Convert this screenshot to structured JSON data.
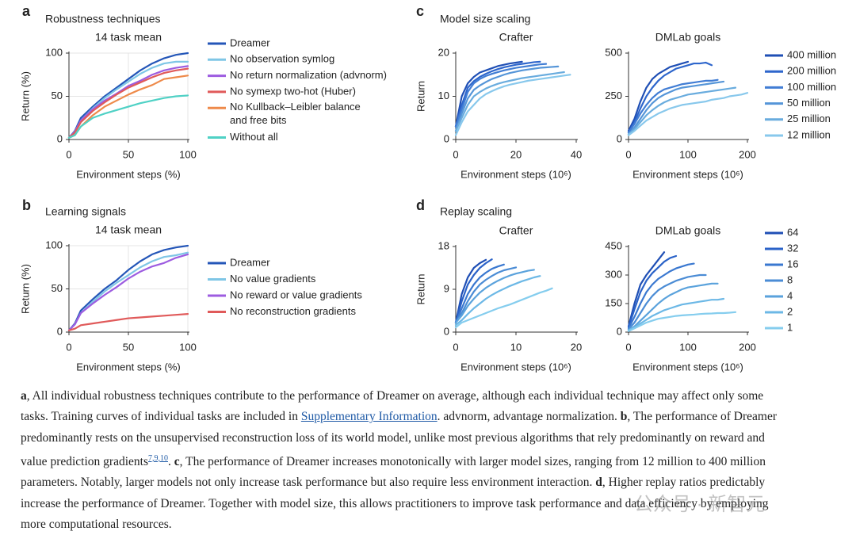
{
  "chart_data": [
    {
      "type": "line",
      "panel": "a",
      "heading": "Robustness techniques",
      "title": "14 task mean",
      "xlabel": "Environment steps (%)",
      "ylabel": "Return (%)",
      "grid": true,
      "x": [
        0,
        5,
        10,
        20,
        30,
        40,
        50,
        60,
        70,
        80,
        90,
        100
      ],
      "xlim": [
        0,
        100
      ],
      "xticks": [
        0,
        50,
        100
      ],
      "ylim": [
        0,
        100
      ],
      "yticks": [
        0,
        50,
        100
      ],
      "series": [
        {
          "name": "Dreamer",
          "color": "#2456b8",
          "values": [
            2,
            10,
            25,
            38,
            50,
            60,
            70,
            80,
            88,
            94,
            98,
            100
          ]
        },
        {
          "name": "No observation symlog",
          "color": "#7fc6e6",
          "values": [
            2,
            9,
            22,
            36,
            48,
            58,
            67,
            76,
            83,
            88,
            90,
            90
          ]
        },
        {
          "name": "No return normalization (advnorm)",
          "color": "#9d5ce0",
          "values": [
            2,
            9,
            22,
            35,
            45,
            53,
            62,
            68,
            75,
            80,
            83,
            85
          ]
        },
        {
          "name": "No symexp two-hot (Huber)",
          "color": "#e05a5a",
          "values": [
            2,
            8,
            20,
            33,
            43,
            52,
            60,
            66,
            72,
            77,
            80,
            82
          ]
        },
        {
          "name": "No Kullback–Leibler balance\nand free bits",
          "color": "#ee8a4a",
          "values": [
            2,
            5,
            15,
            28,
            38,
            45,
            52,
            58,
            63,
            70,
            72,
            74
          ]
        },
        {
          "name": "Without all",
          "color": "#4fd1c5",
          "values": [
            2,
            5,
            15,
            25,
            30,
            34,
            38,
            42,
            45,
            48,
            50,
            51
          ]
        }
      ]
    },
    {
      "type": "line",
      "panel": "b",
      "heading": "Learning signals",
      "title": "14 task mean",
      "xlabel": "Environment steps (%)",
      "ylabel": "Return (%)",
      "grid": true,
      "x": [
        0,
        5,
        10,
        20,
        30,
        40,
        50,
        60,
        70,
        80,
        90,
        100
      ],
      "xlim": [
        0,
        100
      ],
      "xticks": [
        0,
        50,
        100
      ],
      "ylim": [
        0,
        100
      ],
      "yticks": [
        0,
        50,
        100
      ],
      "series": [
        {
          "name": "Dreamer",
          "color": "#2456b8",
          "values": [
            2,
            10,
            25,
            38,
            50,
            60,
            72,
            82,
            90,
            95,
            98,
            100
          ]
        },
        {
          "name": "No value gradients",
          "color": "#7fc6e6",
          "values": [
            2,
            9,
            22,
            35,
            47,
            57,
            66,
            75,
            82,
            87,
            89,
            92
          ]
        },
        {
          "name": "No reward or value gradients",
          "color": "#9d5ce0",
          "values": [
            2,
            9,
            22,
            33,
            43,
            52,
            62,
            70,
            76,
            80,
            86,
            90
          ]
        },
        {
          "name": "No reconstruction gradients",
          "color": "#e05a5a",
          "values": [
            2,
            4,
            8,
            10,
            12,
            14,
            16,
            17,
            18,
            19,
            20,
            21
          ]
        }
      ]
    },
    {
      "type": "line",
      "panel": "c",
      "heading": "Model size scaling",
      "title": "Crafter",
      "xlabel": "Environment steps (10⁶)",
      "ylabel": "Return",
      "grid": false,
      "x": [
        0,
        2,
        4,
        6,
        8,
        10,
        12,
        14,
        16,
        18,
        20,
        22,
        24,
        26,
        28,
        30,
        32,
        34,
        36,
        38
      ],
      "xlim": [
        0,
        40
      ],
      "xticks": [
        0,
        20,
        40
      ],
      "ylim": [
        0,
        20
      ],
      "yticks": [
        0,
        10,
        20
      ],
      "series": [
        {
          "name": "400 million",
          "color": "#1f4fb5",
          "values": [
            3,
            10,
            13,
            14.5,
            15.5,
            16,
            16.5,
            17,
            17.3,
            17.6,
            17.8,
            18,
            null,
            null,
            null,
            null,
            null,
            null,
            null,
            null
          ]
        },
        {
          "name": "200 million",
          "color": "#2e66cc",
          "values": [
            3,
            8,
            12,
            13.5,
            14.5,
            15.2,
            15.8,
            16.3,
            16.7,
            17,
            17.3,
            17.5,
            17.7,
            17.9,
            18,
            null,
            null,
            null,
            null,
            null
          ]
        },
        {
          "name": "100 million",
          "color": "#417dd4",
          "values": [
            3,
            7,
            11,
            13,
            14,
            14.7,
            15.2,
            15.6,
            16,
            16.3,
            16.6,
            16.8,
            17,
            17.2,
            17.4,
            17.5,
            null,
            null,
            null,
            null
          ]
        },
        {
          "name": "50 million",
          "color": "#5595d8",
          "values": [
            2,
            6,
            9.5,
            11.5,
            12.5,
            13.3,
            14,
            14.5,
            15,
            15.4,
            15.7,
            16,
            16.2,
            16.4,
            16.6,
            16.7,
            16.8,
            16.9,
            null,
            null
          ]
        },
        {
          "name": "25 million",
          "color": "#69acde",
          "values": [
            2,
            5,
            8,
            10,
            11,
            11.8,
            12.4,
            12.9,
            13.3,
            13.6,
            13.9,
            14.2,
            14.4,
            14.6,
            14.8,
            15,
            15.2,
            15.4,
            15.6,
            null
          ]
        },
        {
          "name": "12 million",
          "color": "#88c8ec",
          "values": [
            1,
            4,
            6.5,
            8,
            9.5,
            10.5,
            11.2,
            11.8,
            12.3,
            12.7,
            13,
            13.3,
            13.6,
            13.8,
            14,
            14.2,
            14.4,
            14.6,
            14.8,
            15
          ]
        }
      ]
    },
    {
      "type": "line",
      "title": "DMLab goals",
      "xlabel": "Environment steps (10⁶)",
      "grid": false,
      "x": [
        0,
        10,
        20,
        30,
        40,
        50,
        60,
        70,
        80,
        90,
        100,
        110,
        120,
        130,
        140,
        150,
        160,
        170,
        180,
        190,
        200
      ],
      "xlim": [
        0,
        200
      ],
      "xticks": [
        0,
        100,
        200
      ],
      "ylim": [
        0,
        500
      ],
      "yticks": [
        0,
        250,
        500
      ],
      "series": [
        {
          "color": "#1f4fb5",
          "values": [
            50,
            120,
            220,
            300,
            350,
            380,
            400,
            420,
            430,
            440,
            450,
            null,
            null,
            null,
            null,
            null,
            null,
            null,
            null,
            null,
            null
          ]
        },
        {
          "color": "#2e66cc",
          "values": [
            40,
            100,
            180,
            250,
            300,
            340,
            370,
            390,
            410,
            420,
            430,
            440,
            440,
            445,
            430,
            null,
            null,
            null,
            null,
            null,
            null
          ]
        },
        {
          "color": "#417dd4",
          "values": [
            40,
            90,
            150,
            200,
            240,
            270,
            290,
            300,
            310,
            320,
            325,
            330,
            335,
            340,
            340,
            345,
            null,
            null,
            null,
            null,
            null
          ]
        },
        {
          "color": "#5595d8",
          "values": [
            30,
            70,
            120,
            170,
            210,
            240,
            260,
            275,
            290,
            300,
            305,
            310,
            315,
            320,
            325,
            330,
            335,
            null,
            null,
            null,
            null
          ]
        },
        {
          "color": "#69acde",
          "values": [
            30,
            60,
            100,
            140,
            170,
            195,
            215,
            230,
            240,
            250,
            260,
            265,
            270,
            275,
            280,
            285,
            290,
            295,
            300,
            null,
            null
          ]
        },
        {
          "color": "#88c8ec",
          "values": [
            25,
            50,
            80,
            110,
            130,
            150,
            165,
            180,
            190,
            200,
            205,
            210,
            215,
            220,
            230,
            235,
            240,
            250,
            255,
            260,
            270
          ]
        }
      ]
    },
    {
      "type": "line",
      "panel": "d",
      "heading": "Replay scaling",
      "title": "Crafter",
      "xlabel": "Environment steps (10⁶)",
      "ylabel": "Return",
      "grid": false,
      "x": [
        0,
        1,
        2,
        3,
        4,
        5,
        6,
        7,
        8,
        9,
        10,
        11,
        12,
        13,
        14,
        15,
        16
      ],
      "xlim": [
        0,
        20
      ],
      "xticks": [
        0,
        10,
        20
      ],
      "ylim": [
        0,
        18
      ],
      "yticks": [
        0,
        9,
        18
      ],
      "series": [
        {
          "name": "64",
          "color": "#1f4fb5",
          "values": [
            2,
            8,
            11.5,
            13.5,
            14.5,
            15.2,
            null,
            null,
            null,
            null,
            null,
            null,
            null,
            null,
            null,
            null,
            null
          ]
        },
        {
          "name": "32",
          "color": "#2a62c8",
          "values": [
            2,
            6.5,
            10,
            12,
            13.5,
            14.5,
            15.3,
            null,
            null,
            null,
            null,
            null,
            null,
            null,
            null,
            null,
            null
          ]
        },
        {
          "name": "16",
          "color": "#3a78d0",
          "values": [
            2,
            5,
            8,
            10,
            11.5,
            12.5,
            13.3,
            13.8,
            14.2,
            null,
            null,
            null,
            null,
            null,
            null,
            null,
            null
          ]
        },
        {
          "name": "8",
          "color": "#4b8cd5",
          "values": [
            2,
            4,
            6.5,
            8.5,
            10,
            11,
            11.8,
            12.5,
            13,
            13.3,
            13.6,
            null,
            null,
            null,
            null,
            null,
            null
          ]
        },
        {
          "name": "4",
          "color": "#5aa2dc",
          "values": [
            2,
            3.5,
            5.5,
            7,
            8.3,
            9.3,
            10.1,
            10.8,
            11.4,
            11.9,
            12.3,
            12.6,
            12.9,
            13.1,
            null,
            null,
            null
          ]
        },
        {
          "name": "2",
          "color": "#6cb8e6",
          "values": [
            1.5,
            2.5,
            3.8,
            5,
            6,
            7,
            7.8,
            8.5,
            9.1,
            9.7,
            10.2,
            10.7,
            11.1,
            11.5,
            11.8,
            null,
            null
          ]
        },
        {
          "name": "1",
          "color": "#85cdee",
          "values": [
            1,
            2,
            2.5,
            3,
            3.5,
            4,
            4.5,
            5,
            5.4,
            5.8,
            6.3,
            6.8,
            7.3,
            7.8,
            8.3,
            8.7,
            9.2
          ]
        }
      ]
    },
    {
      "type": "line",
      "title": "DMLab goals",
      "xlabel": "Environment steps (10⁶)",
      "grid": false,
      "x": [
        0,
        10,
        20,
        30,
        40,
        50,
        60,
        70,
        80,
        90,
        100,
        110,
        120,
        130,
        140,
        150,
        160,
        170,
        180
      ],
      "xlim": [
        0,
        200
      ],
      "xticks": [
        0,
        100,
        200
      ],
      "ylim": [
        0,
        450
      ],
      "yticks": [
        0,
        150,
        300,
        450
      ],
      "series": [
        {
          "color": "#1f4fb5",
          "values": [
            30,
            150,
            250,
            300,
            340,
            380,
            420,
            null,
            null,
            null,
            null,
            null,
            null,
            null,
            null,
            null,
            null,
            null,
            null
          ]
        },
        {
          "color": "#2a62c8",
          "values": [
            25,
            120,
            210,
            270,
            310,
            340,
            370,
            390,
            400,
            null,
            null,
            null,
            null,
            null,
            null,
            null,
            null,
            null,
            null
          ]
        },
        {
          "color": "#3a78d0",
          "values": [
            20,
            80,
            150,
            210,
            250,
            280,
            300,
            320,
            335,
            345,
            355,
            360,
            null,
            null,
            null,
            null,
            null,
            null,
            null
          ]
        },
        {
          "color": "#4b8cd5",
          "values": [
            15,
            50,
            100,
            150,
            190,
            220,
            240,
            255,
            270,
            280,
            290,
            295,
            300,
            300,
            null,
            null,
            null,
            null,
            null
          ]
        },
        {
          "color": "#5aa2dc",
          "values": [
            10,
            30,
            60,
            90,
            120,
            150,
            175,
            195,
            210,
            225,
            235,
            240,
            245,
            250,
            255,
            255,
            null,
            null,
            null
          ]
        },
        {
          "color": "#6cb8e6",
          "values": [
            10,
            25,
            45,
            65,
            85,
            100,
            115,
            125,
            135,
            145,
            150,
            155,
            160,
            165,
            170,
            170,
            175,
            null,
            null
          ]
        },
        {
          "color": "#85cdee",
          "values": [
            5,
            20,
            35,
            50,
            60,
            70,
            75,
            80,
            85,
            88,
            90,
            92,
            95,
            97,
            98,
            100,
            100,
            102,
            105
          ]
        }
      ]
    }
  ],
  "caption": {
    "parts": [
      "a",
      ", All individual robustness techniques contribute to the performance of Dreamer on average, although each individual technique may affect only some",
      "tasks. Training curves of individual tasks are included in",
      "Supplementary Information",
      ". advnorm, advantage normalization.",
      "b",
      ", The performance of Dreamer",
      "predominantly rests on the unsupervised reconstruction loss of its world model, unlike most previous algorithms that rely predominantly on reward and",
      "value prediction gradients",
      "7,9,10",
      ".",
      "c",
      ", The performance of Dreamer increases monotonically with larger model sizes, ranging from 12 million to 400 million",
      "parameters. Notably, larger models not only increase task performance but also require less environment interaction.",
      "d",
      ", Higher replay ratios predictably",
      "increase the performance of Dreamer. Together with model size, this allows practitioners to improve task performance and data efficiency by employing",
      "more computational resources."
    ]
  },
  "watermark": "公众号 · 新智元"
}
